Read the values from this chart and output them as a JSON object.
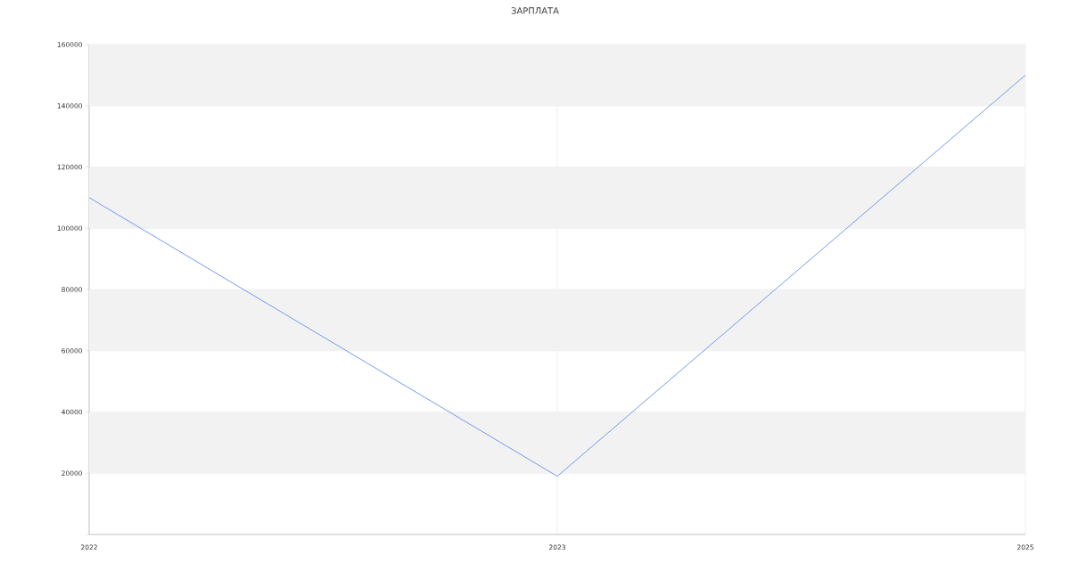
{
  "chart_data": {
    "type": "line",
    "title": "ЗАРПЛАТА",
    "categories": [
      "2022",
      "2023",
      "2025"
    ],
    "series": [
      {
        "color": "#6f9cf0",
        "values": [
          110000,
          19000,
          150000
        ]
      }
    ],
    "ylim": [
      0,
      160000
    ],
    "yticks": [
      {
        "value": 0,
        "label": null
      },
      20000,
      40000,
      60000,
      80000,
      100000,
      120000,
      140000,
      160000
    ],
    "grid": true,
    "bands": [
      {
        "axis": "y",
        "from": 20000,
        "to": 40000,
        "color": "#f2f2f2"
      },
      {
        "axis": "y",
        "from": 60000,
        "to": 80000,
        "color": "#f2f2f2"
      },
      {
        "axis": "y",
        "from": 100000,
        "to": 120000,
        "color": "#f2f2f2"
      },
      {
        "axis": "y",
        "from": 140000,
        "to": 160000,
        "color": "#f2f2f2"
      }
    ]
  }
}
